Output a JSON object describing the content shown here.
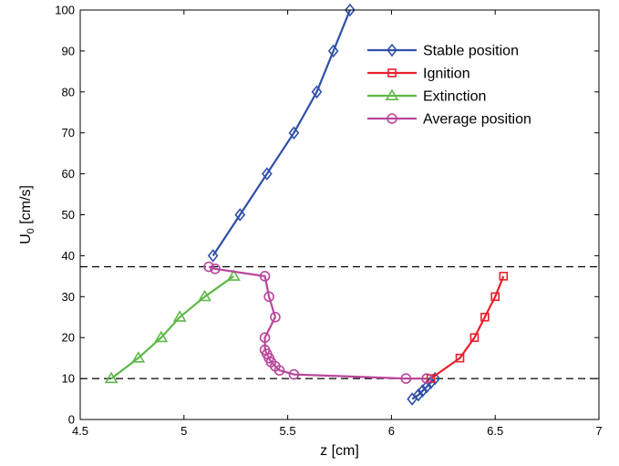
{
  "chart_data": {
    "type": "line",
    "xlabel": "z [cm]",
    "ylabel": "U",
    "ylabel_subscript": "0",
    "ylabel_suffix": " [cm/s]",
    "xlim": [
      4.5,
      7
    ],
    "ylim": [
      0,
      100
    ],
    "xticks": [
      4.5,
      5,
      5.5,
      6,
      6.5,
      7
    ],
    "yticks": [
      0,
      10,
      20,
      30,
      40,
      50,
      60,
      70,
      80,
      90,
      100
    ],
    "grid": false,
    "legend_position": "top-right",
    "reference_lines": [
      {
        "axis": "y",
        "value": 10,
        "style": "dashed",
        "color": "#000000"
      },
      {
        "axis": "y",
        "value": 37.3,
        "style": "dashed",
        "color": "#000000"
      }
    ],
    "series": [
      {
        "name": "Stable position",
        "color": "#2f4fa8",
        "marker": "diamond",
        "points": [
          [
            6.1,
            5
          ],
          [
            6.13,
            6
          ],
          [
            6.15,
            7
          ],
          [
            6.17,
            8
          ],
          [
            6.19,
            9
          ],
          [
            6.21,
            10
          ],
          [
            5.14,
            40
          ],
          [
            5.27,
            50
          ],
          [
            5.4,
            60
          ],
          [
            5.53,
            70
          ],
          [
            5.64,
            80
          ],
          [
            5.72,
            90
          ],
          [
            5.8,
            100
          ]
        ],
        "lines": [
          [
            0,
            5
          ],
          [
            6,
            12
          ]
        ]
      },
      {
        "name": "Ignition",
        "color": "#e8202a",
        "marker": "square",
        "points": [
          [
            6.19,
            10
          ],
          [
            6.33,
            15
          ],
          [
            6.4,
            20
          ],
          [
            6.45,
            25
          ],
          [
            6.5,
            30
          ],
          [
            6.54,
            35
          ]
        ],
        "lines": [
          [
            0,
            5
          ]
        ]
      },
      {
        "name": "Extinction",
        "color": "#5db947",
        "marker": "triangle",
        "points": [
          [
            4.65,
            10
          ],
          [
            4.78,
            15
          ],
          [
            4.89,
            20
          ],
          [
            4.98,
            25
          ],
          [
            5.1,
            30
          ],
          [
            5.24,
            35
          ]
        ],
        "lines": [
          [
            0,
            5
          ]
        ]
      },
      {
        "name": "Average position",
        "color": "#b9479b",
        "marker": "circle",
        "points": [
          [
            5.12,
            37.3
          ],
          [
            5.15,
            36.8
          ],
          [
            5.39,
            35
          ],
          [
            5.41,
            30
          ],
          [
            5.44,
            25
          ],
          [
            5.39,
            20
          ],
          [
            5.39,
            17
          ],
          [
            5.4,
            16
          ],
          [
            5.41,
            15
          ],
          [
            5.42,
            14
          ],
          [
            5.44,
            13
          ],
          [
            5.46,
            12
          ],
          [
            5.53,
            11
          ],
          [
            6.07,
            10
          ],
          [
            6.17,
            10
          ]
        ],
        "lines": [
          [
            0,
            14
          ]
        ]
      }
    ]
  }
}
